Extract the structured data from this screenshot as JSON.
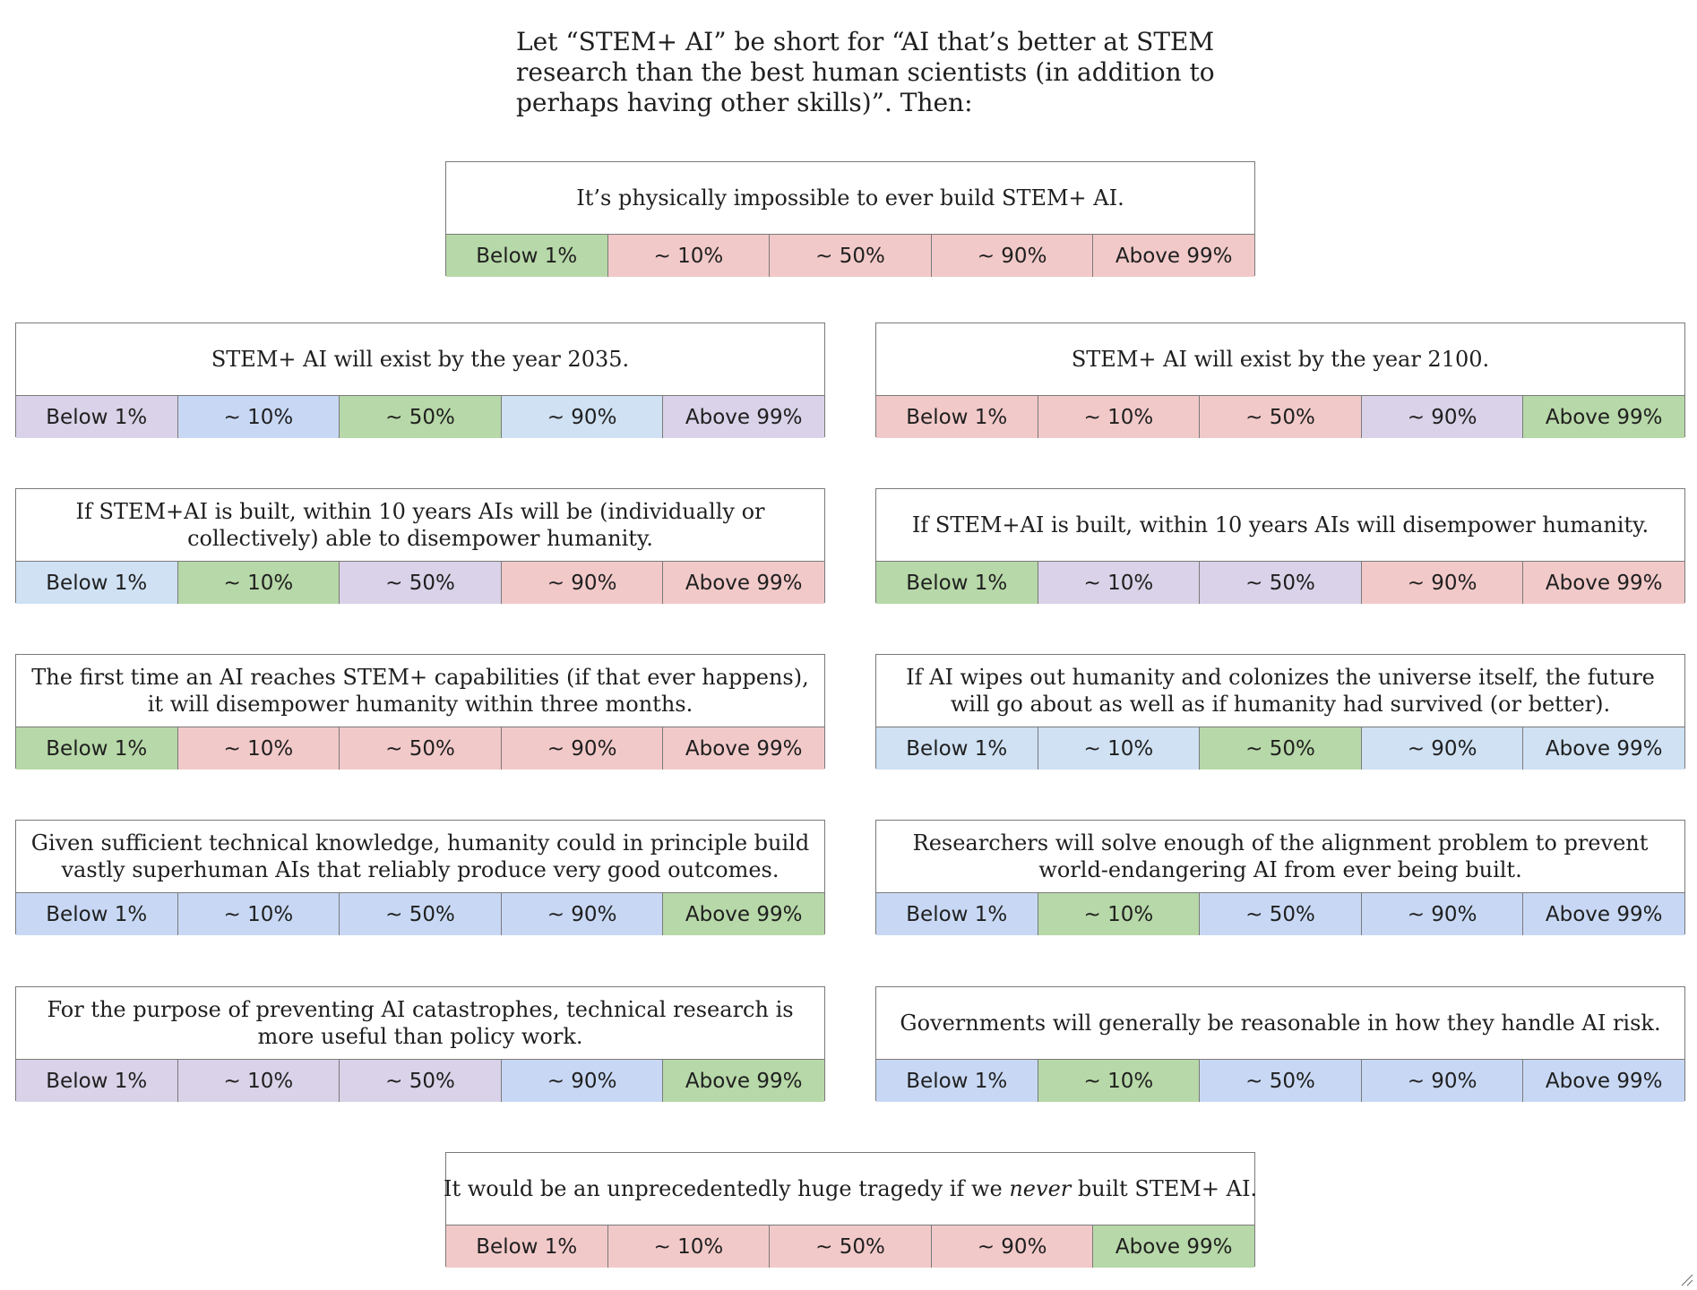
{
  "intro": {
    "line1": "Let “STEM+ AI” be short for “AI that’s better at STEM",
    "line2": "research than the best human scientists (in addition to",
    "line3": "perhaps having other skills)”. Then:"
  },
  "options": [
    "Below 1%",
    "~ 10%",
    "~ 50%",
    "~ 90%",
    "Above 99%"
  ],
  "colors": {
    "green": "#b7d8a8",
    "red": "#f2c9c9",
    "purple": "#d9d2e8",
    "blue": "#c8d8f4",
    "lightblue": "#cfe1f3"
  },
  "questions": [
    {
      "text": "It’s physically impossible to ever build STEM+ AI.",
      "colors": [
        "green",
        "red",
        "red",
        "red",
        "red"
      ]
    },
    {
      "text": "STEM+ AI will exist by the year 2035.",
      "colors": [
        "purple",
        "blue",
        "green",
        "lightblue",
        "purple"
      ]
    },
    {
      "text": "STEM+ AI will exist by the year 2100.",
      "colors": [
        "red",
        "red",
        "red",
        "purple",
        "green"
      ]
    },
    {
      "text": "If STEM+AI is built, within 10 years AIs will be (individually or collectively) able to disempower humanity.",
      "colors": [
        "lightblue",
        "green",
        "purple",
        "red",
        "red"
      ]
    },
    {
      "text": "If STEM+AI is built, within 10 years AIs will disempower humanity.",
      "colors": [
        "green",
        "purple",
        "purple",
        "red",
        "red"
      ]
    },
    {
      "text": "The first time an AI reaches STEM+ capabilities (if that ever happens), it will disempower humanity within three months.",
      "colors": [
        "green",
        "red",
        "red",
        "red",
        "red"
      ]
    },
    {
      "text": "If AI wipes out humanity and colonizes the universe itself, the future will go about as well as if humanity had survived (or better).",
      "colors": [
        "lightblue",
        "lightblue",
        "green",
        "lightblue",
        "lightblue"
      ]
    },
    {
      "text": "Given sufficient technical knowledge, humanity could in principle build vastly superhuman AIs that reliably produce very good outcomes.",
      "colors": [
        "blue",
        "blue",
        "blue",
        "blue",
        "green"
      ]
    },
    {
      "text": "Researchers will solve enough of the alignment problem to prevent world-endangering AI from ever being built.",
      "colors": [
        "blue",
        "green",
        "blue",
        "blue",
        "blue"
      ]
    },
    {
      "text": "For the purpose of preventing AI catastrophes, technical research is more useful than policy work.",
      "colors": [
        "purple",
        "purple",
        "purple",
        "blue",
        "green"
      ]
    },
    {
      "text": "Governments will generally be reasonable in how they handle AI risk.",
      "colors": [
        "blue",
        "green",
        "blue",
        "blue",
        "blue"
      ]
    },
    {
      "text_before": "It would be an unprecedentedly huge tragedy if we ",
      "text_em": "never",
      "text_after": " built STEM+ AI.",
      "colors": [
        "red",
        "red",
        "red",
        "red",
        "green"
      ]
    }
  ]
}
